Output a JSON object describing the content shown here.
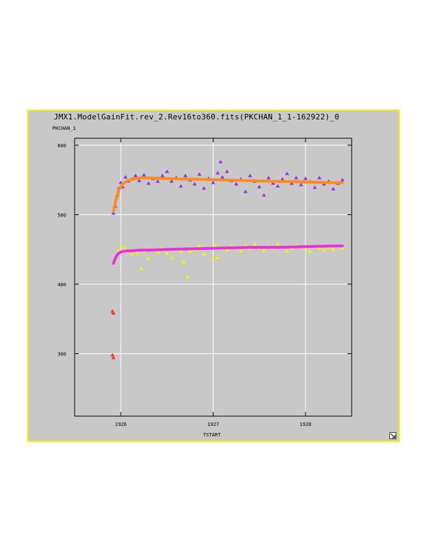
{
  "window": {
    "title": "JMX1.ModelGainFit.rev_2.Rev16to360.fits(PKCHAN_1_1-162922)_0"
  },
  "chart_data": {
    "type": "scatter",
    "title": "JMX1.ModelGainFit.rev_2.Rev16to360.fits(PKCHAN_1_1-162922)_0",
    "xlabel": "TSTART",
    "ylabel": "PKCHAN_1",
    "xlim": [
      1925.5,
      1928.5
    ],
    "ylim": [
      210,
      610
    ],
    "x_ticks": [
      1926,
      1927,
      1928
    ],
    "y_ticks": [
      300,
      400,
      500,
      600
    ],
    "x_tick_labels": [
      "1926",
      "1927",
      "1928"
    ],
    "y_tick_labels": [
      "300",
      "400",
      "500",
      "600"
    ],
    "grid": true,
    "colors": {
      "frame_border": "#f0f000",
      "frame_bg": "#c8c8c8",
      "plot_bg": "#c8c8c8",
      "grid": "#ffffff"
    },
    "series": [
      {
        "kind": "points",
        "color": "#9b30e8",
        "x": [
          1925.92,
          1925.94,
          1925.96,
          1925.98,
          1926.0,
          1926.02,
          1926.05,
          1926.08,
          1926.12,
          1926.16,
          1926.2,
          1926.25,
          1926.3,
          1926.35,
          1926.4,
          1926.45,
          1926.5,
          1926.55,
          1926.6,
          1926.65,
          1926.7,
          1926.75,
          1926.8,
          1926.85,
          1926.9,
          1926.95,
          1927.0,
          1927.05,
          1927.08,
          1927.1,
          1927.15,
          1927.2,
          1927.25,
          1927.3,
          1927.35,
          1927.4,
          1927.45,
          1927.5,
          1927.55,
          1927.6,
          1927.65,
          1927.7,
          1927.75,
          1927.8,
          1927.85,
          1927.9,
          1927.95,
          1928.0,
          1928.05,
          1928.1,
          1928.15,
          1928.2,
          1928.25,
          1928.3,
          1928.35,
          1928.4
        ],
        "y": [
          502,
          512,
          528,
          538,
          546,
          540,
          554,
          548,
          551,
          556,
          549,
          557,
          545,
          552,
          548,
          556,
          562,
          548,
          553,
          541,
          556,
          550,
          544,
          558,
          538,
          552,
          546,
          560,
          576,
          554,
          562,
          549,
          544,
          551,
          533,
          556,
          548,
          540,
          528,
          553,
          545,
          541,
          551,
          559,
          545,
          553,
          543,
          552,
          547,
          539,
          553,
          544,
          548,
          537,
          545,
          550
        ]
      },
      {
        "kind": "line",
        "color": "#ff8c1a",
        "x": [
          1925.92,
          1925.95,
          1925.98,
          1926.02,
          1926.06,
          1926.12,
          1926.2,
          1926.3,
          1926.5,
          1926.8,
          1927.1,
          1927.4,
          1927.7,
          1928.0,
          1928.3,
          1928.4
        ],
        "y": [
          505,
          523,
          536,
          544,
          548,
          551,
          553,
          553,
          552,
          551,
          550,
          549,
          548,
          547,
          546,
          546
        ]
      },
      {
        "kind": "points",
        "color": "#f5f500",
        "x": [
          1925.94,
          1925.97,
          1926.0,
          1926.04,
          1926.08,
          1926.12,
          1926.18,
          1926.22,
          1926.26,
          1926.3,
          1926.35,
          1926.4,
          1926.45,
          1926.5,
          1926.55,
          1926.6,
          1926.65,
          1926.68,
          1926.72,
          1926.75,
          1926.8,
          1926.85,
          1926.9,
          1926.95,
          1927.0,
          1927.02,
          1927.05,
          1927.1,
          1927.15,
          1927.2,
          1927.25,
          1927.3,
          1927.35,
          1927.4,
          1927.45,
          1927.5,
          1927.55,
          1927.6,
          1927.65,
          1927.7,
          1927.75,
          1927.8,
          1927.85,
          1927.9,
          1927.95,
          1928.0,
          1928.05,
          1928.1,
          1928.15,
          1928.2,
          1928.25,
          1928.3,
          1928.35,
          1928.4
        ],
        "y": [
          436,
          448,
          456,
          452,
          449,
          443,
          445,
          422,
          447,
          437,
          450,
          446,
          452,
          444,
          438,
          451,
          447,
          432,
          410,
          447,
          449,
          455,
          443,
          452,
          437,
          456,
          438,
          452,
          449,
          455,
          453,
          448,
          456,
          451,
          457,
          452,
          449,
          455,
          452,
          458,
          454,
          448,
          452,
          456,
          453,
          451,
          447,
          455,
          452,
          449,
          453,
          450,
          455,
          452
        ]
      },
      {
        "kind": "line",
        "color": "#e830e0",
        "x": [
          1925.92,
          1925.95,
          1925.98,
          1926.02,
          1926.06,
          1926.12,
          1926.2,
          1926.3,
          1926.5,
          1926.8,
          1927.1,
          1927.4,
          1927.7,
          1928.0,
          1928.3,
          1928.4
        ],
        "y": [
          430,
          440,
          445,
          447,
          448,
          448,
          449,
          449,
          450,
          451,
          452,
          453,
          453,
          454,
          455,
          455
        ]
      },
      {
        "kind": "points",
        "color": "#ff3030",
        "x": [
          1925.91,
          1925.92,
          1925.91,
          1925.92
        ],
        "y": [
          361,
          358,
          298,
          294
        ]
      }
    ]
  }
}
